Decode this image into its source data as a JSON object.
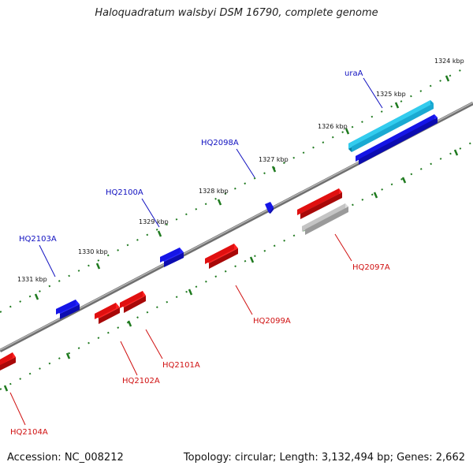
{
  "title": "Haloquadratum walsbyi DSM 16790, complete genome",
  "footer": {
    "accession": "Accession: NC_008212",
    "topology": "Topology: circular; Length: 3,132,494 bp; Genes: 2,662"
  },
  "colors": {
    "backbone": "#8a8a8a",
    "tick": "#1f7a1f",
    "forward_gene": "#1010e0",
    "forward_label": "#1010c0",
    "reverse_gene": "#e01010",
    "reverse_label": "#d01010",
    "rna_gene": "#33ccee",
    "pseudo_gene": "#bdbdbd"
  },
  "kbp_labels": [
    "1324 kbp",
    "1325 kbp",
    "1326 kbp",
    "1327 kbp",
    "1328 kbp",
    "1329 kbp",
    "1330 kbp",
    "1331 kbp"
  ],
  "genes_forward": [
    {
      "label": "uraA"
    },
    {
      "label": "HQ2098A"
    },
    {
      "label": "HQ2100A"
    },
    {
      "label": "HQ2103A"
    }
  ],
  "genes_reverse": [
    {
      "label": "HQ2097A"
    },
    {
      "label": "HQ2099A"
    },
    {
      "label": "HQ2101A"
    },
    {
      "label": "HQ2102A"
    },
    {
      "label": "HQ2104A"
    }
  ]
}
